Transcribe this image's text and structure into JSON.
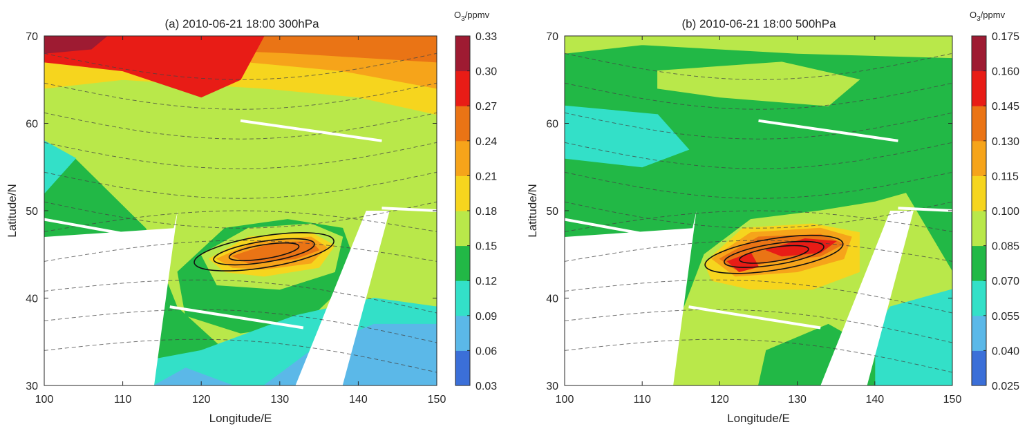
{
  "chart_data": [
    {
      "type": "heatmap",
      "title": "(a) 2010-06-21 18:00 300hPa",
      "xlabel": "Longitude/E",
      "ylabel": "Latitude/N",
      "xlim": [
        100,
        150
      ],
      "ylim": [
        30,
        70
      ],
      "xticks": [
        "100",
        "110",
        "120",
        "130",
        "140",
        "150"
      ],
      "yticks": [
        "30",
        "40",
        "50",
        "60",
        "70"
      ],
      "colorbar": {
        "unit_main": "O",
        "unit_sub": "3",
        "unit_rest": "/ppmv",
        "ticks": [
          "0.03",
          "0.06",
          "0.09",
          "0.12",
          "0.15",
          "0.18",
          "0.21",
          "0.24",
          "0.27",
          "0.30",
          "0.33"
        ],
        "colors": [
          "#3b6fd8",
          "#5bb8e8",
          "#33e0c8",
          "#22b846",
          "#b9e84a",
          "#f6d51e",
          "#f6a41a",
          "#ea7415",
          "#e81c16",
          "#9e1b32"
        ]
      },
      "background_color": "#22b846",
      "regions": [
        {
          "color": "#b9e84a",
          "points": [
            [
              100,
              66
            ],
            [
              130,
              65
            ],
            [
              150,
              62
            ],
            [
              150,
              30
            ],
            [
              128,
              30
            ],
            [
              117,
              39
            ],
            [
              113,
              48
            ],
            [
              104,
              56
            ],
            [
              100,
              58
            ]
          ]
        },
        {
          "color": "#33e0c8",
          "points": [
            [
              100,
              58
            ],
            [
              104,
              56
            ],
            [
              100,
              52
            ]
          ]
        },
        {
          "color": "#f6d51e",
          "points": [
            [
              100,
              70
            ],
            [
              150,
              70
            ],
            [
              150,
              61
            ],
            [
              140,
              63
            ],
            [
              128,
              64
            ],
            [
              110,
              65
            ],
            [
              100,
              64
            ]
          ]
        },
        {
          "color": "#f6a41a",
          "points": [
            [
              100,
              70
            ],
            [
              150,
              70
            ],
            [
              150,
              64
            ],
            [
              138,
              66
            ],
            [
              126,
              67
            ],
            [
              110,
              67
            ],
            [
              100,
              67
            ]
          ]
        },
        {
          "color": "#ea7415",
          "points": [
            [
              100,
              70
            ],
            [
              150,
              70
            ],
            [
              150,
              67
            ],
            [
              132,
              68
            ],
            [
              120,
              68.5
            ],
            [
              100,
              68.5
            ]
          ]
        },
        {
          "color": "#e81c16",
          "points": [
            [
              100,
              70
            ],
            [
              128,
              70
            ],
            [
              125,
              65
            ],
            [
              120,
              63
            ],
            [
              110,
              66
            ],
            [
              100,
              67
            ]
          ]
        },
        {
          "color": "#9e1b32",
          "points": [
            [
              100,
              70
            ],
            [
              108,
              70
            ],
            [
              106,
              68.5
            ],
            [
              100,
              68
            ]
          ]
        },
        {
          "color": "#22b846",
          "points": [
            [
              117,
              43
            ],
            [
              123,
              48
            ],
            [
              131,
              49
            ],
            [
              138,
              48
            ],
            [
              140,
              43
            ],
            [
              133,
              37
            ],
            [
              125,
              36
            ],
            [
              118,
              38
            ]
          ]
        },
        {
          "color": "#b9e84a",
          "points": [
            [
              120,
              45
            ],
            [
              126,
              48
            ],
            [
              134,
              48.5
            ],
            [
              138,
              47
            ],
            [
              137,
              43
            ],
            [
              130,
              41
            ],
            [
              122,
              41.5
            ]
          ]
        },
        {
          "color": "#f6d51e",
          "points": [
            [
              121,
              44.5
            ],
            [
              126,
              47
            ],
            [
              134,
              47.5
            ],
            [
              137,
              46
            ],
            [
              135,
              43.5
            ],
            [
              128,
              42.5
            ],
            [
              123,
              43
            ]
          ]
        },
        {
          "color": "#f6a41a",
          "points": [
            [
              122,
              44.5
            ],
            [
              127,
              46.5
            ],
            [
              134,
              47
            ],
            [
              136,
              45.8
            ],
            [
              134,
              44
            ],
            [
              128,
              43.3
            ],
            [
              124,
              43.5
            ]
          ]
        },
        {
          "color": "#ea7415",
          "points": [
            [
              124,
              44.8
            ],
            [
              129,
              46.3
            ],
            [
              134,
              46.5
            ],
            [
              135,
              45.5
            ],
            [
              132,
              44.5
            ],
            [
              126,
              44
            ]
          ]
        },
        {
          "color": "#33e0c8",
          "points": [
            [
              114,
              30
            ],
            [
              150,
              30
            ],
            [
              150,
              39
            ],
            [
              142,
              40
            ],
            [
              132,
              38
            ],
            [
              120,
              34
            ],
            [
              114,
              33
            ]
          ]
        },
        {
          "color": "#5bb8e8",
          "points": [
            [
              128,
              30
            ],
            [
              150,
              30
            ],
            [
              150,
              37
            ],
            [
              142,
              37
            ],
            [
              134,
              34
            ]
          ]
        },
        {
          "color": "#5bb8e8",
          "points": [
            [
              114,
              30
            ],
            [
              124,
              30
            ],
            [
              118,
              32
            ]
          ]
        }
      ],
      "blank_regions": [
        {
          "points": [
            [
              100,
              30
            ],
            [
              114,
              30
            ],
            [
              117,
              50
            ],
            [
              116.5,
              48
            ],
            [
              100,
              47
            ]
          ]
        },
        {
          "points": [
            [
              132,
              30
            ],
            [
              138,
              30
            ],
            [
              144,
              50
            ],
            [
              141,
              50
            ]
          ]
        }
      ]
    },
    {
      "type": "heatmap",
      "title": "(b) 2010-06-21 18:00 500hPa",
      "xlabel": "Longitude/E",
      "ylabel": "Latitude/N",
      "xlim": [
        100,
        150
      ],
      "ylim": [
        30,
        70
      ],
      "xticks": [
        "100",
        "110",
        "120",
        "130",
        "140",
        "150"
      ],
      "yticks": [
        "30",
        "40",
        "50",
        "60",
        "70"
      ],
      "colorbar": {
        "unit_main": "O",
        "unit_sub": "3",
        "unit_rest": "/ppmv",
        "ticks": [
          "0.025",
          "0.040",
          "0.055",
          "0.070",
          "0.085",
          "0.100",
          "0.115",
          "0.130",
          "0.145",
          "0.160",
          "0.175"
        ],
        "colors": [
          "#3b6fd8",
          "#5bb8e8",
          "#33e0c8",
          "#22b846",
          "#b9e84a",
          "#f6d51e",
          "#f6a41a",
          "#ea7415",
          "#e81c16",
          "#9e1b32"
        ]
      },
      "background_color": "#22b846",
      "regions": [
        {
          "color": "#b9e84a",
          "points": [
            [
              100,
              70
            ],
            [
              150,
              70
            ],
            [
              150,
              67.5
            ],
            [
              130,
              68
            ],
            [
              110,
              69
            ],
            [
              100,
              68
            ]
          ]
        },
        {
          "color": "#b9e84a",
          "points": [
            [
              112,
              66
            ],
            [
              128,
              67
            ],
            [
              138,
              65
            ],
            [
              134,
              62
            ],
            [
              120,
              63
            ],
            [
              112,
              64
            ]
          ]
        },
        {
          "color": "#33e0c8",
          "points": [
            [
              100,
              62
            ],
            [
              112,
              61
            ],
            [
              116,
              57
            ],
            [
              110,
              55
            ],
            [
              100,
              56
            ]
          ]
        },
        {
          "color": "#b9e84a",
          "points": [
            [
              114,
              30
            ],
            [
              150,
              30
            ],
            [
              150,
              43
            ],
            [
              144,
              52
            ],
            [
              140,
              51
            ],
            [
              133,
              50
            ],
            [
              124,
              49
            ],
            [
              118,
              45
            ],
            [
              115,
              38
            ]
          ]
        },
        {
          "color": "#33e0c8",
          "points": [
            [
              139,
              30
            ],
            [
              150,
              30
            ],
            [
              150,
              41
            ],
            [
              142,
              39
            ],
            [
              139,
              35
            ]
          ]
        },
        {
          "color": "#22b846",
          "points": [
            [
              125,
              30
            ],
            [
              140,
              30
            ],
            [
              140,
              34
            ],
            [
              134,
              37
            ],
            [
              126,
              34
            ]
          ]
        },
        {
          "color": "#f6d51e",
          "points": [
            [
              118,
              44
            ],
            [
              123,
              48
            ],
            [
              132,
              48.5
            ],
            [
              138,
              47.5
            ],
            [
              138,
              43
            ],
            [
              132,
              41
            ],
            [
              124,
              41
            ],
            [
              119,
              42
            ]
          ]
        },
        {
          "color": "#f6a41a",
          "points": [
            [
              119,
              44.5
            ],
            [
              124,
              47.5
            ],
            [
              133,
              48
            ],
            [
              137,
              47
            ],
            [
              136,
              44.5
            ],
            [
              130,
              43
            ],
            [
              122,
              42.5
            ]
          ]
        },
        {
          "color": "#ea7415",
          "points": [
            [
              120,
              44.5
            ],
            [
              125,
              47
            ],
            [
              133,
              47.3
            ],
            [
              136,
              46.2
            ],
            [
              133,
              44.8
            ],
            [
              127,
              44.2
            ],
            [
              122,
              43.3
            ]
          ]
        },
        {
          "color": "#e81c16",
          "points": [
            [
              121,
              44.2
            ],
            [
              124,
              45.2
            ],
            [
              125,
              43.6
            ],
            [
              122.5,
              43
            ]
          ]
        },
        {
          "color": "#e81c16",
          "points": [
            [
              126,
              45.5
            ],
            [
              131,
              46.8
            ],
            [
              135,
              46.5
            ],
            [
              133,
              45.2
            ],
            [
              128,
              44.8
            ]
          ]
        }
      ],
      "blank_regions": [
        {
          "points": [
            [
              100,
              30
            ],
            [
              114,
              30
            ],
            [
              117,
              50
            ],
            [
              116.5,
              48
            ],
            [
              100,
              47
            ]
          ]
        },
        {
          "points": [
            [
              133,
              30
            ],
            [
              139,
              30
            ],
            [
              145,
              50
            ],
            [
              142,
              50
            ]
          ]
        }
      ]
    }
  ]
}
